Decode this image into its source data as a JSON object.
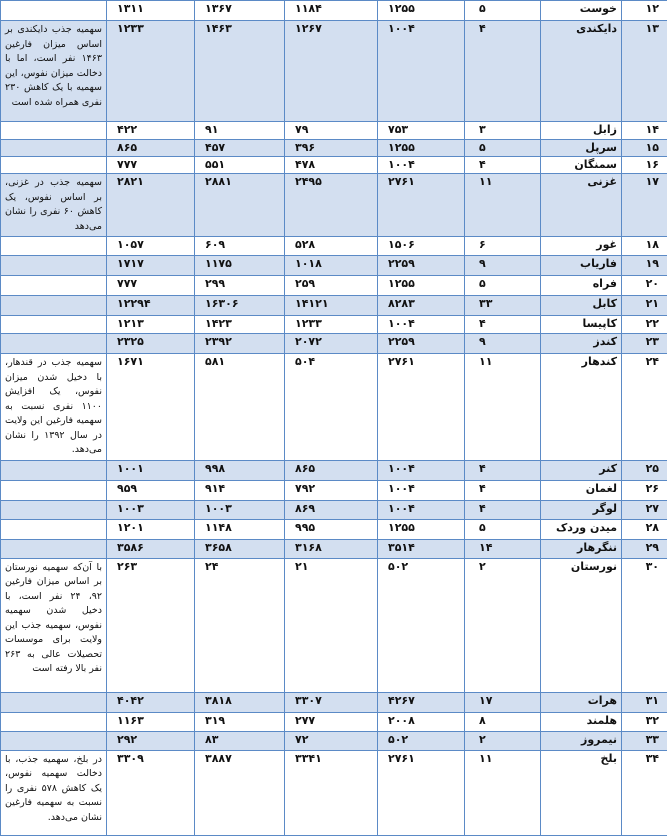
{
  "table": {
    "shaded_color": "#d3dff0",
    "border_color": "#5b8ac6",
    "rows": [
      {
        "num": "۱۲",
        "province": "خوست",
        "seats": "۵",
        "c4": "۱۲۵۵",
        "c5": "۱۱۸۴",
        "c6": "۱۳۶۷",
        "c7": "۱۳۱۱",
        "note": "",
        "shaded": false
      },
      {
        "num": "۱۳",
        "province": "دایکندی",
        "seats": "۴",
        "c4": "۱۰۰۴",
        "c5": "۱۲۶۷",
        "c6": "۱۴۶۳",
        "c7": "۱۲۳۳",
        "note": "سهمیه جذب دایکندی بر اساس میزان فارغین ۱۴۶۳ نفر است، اما با دخالت میزان نفوس، این سهمیه با یک کاهش ۲۳۰ نفری همراه شده است",
        "shaded": true
      },
      {
        "num": "۱۴",
        "province": "زابل",
        "seats": "۳",
        "c4": "۷۵۳",
        "c5": "۷۹",
        "c6": "۹۱",
        "c7": "۴۲۲",
        "note": "",
        "shaded": false
      },
      {
        "num": "۱۵",
        "province": "سرپل",
        "seats": "۵",
        "c4": "۱۲۵۵",
        "c5": "۳۹۶",
        "c6": "۴۵۷",
        "c7": "۸۶۵",
        "note": "",
        "shaded": true
      },
      {
        "num": "۱۶",
        "province": "سمنگان",
        "seats": "۴",
        "c4": "۱۰۰۴",
        "c5": "۴۷۸",
        "c6": "۵۵۱",
        "c7": "۷۷۷",
        "note": "",
        "shaded": false
      },
      {
        "num": "۱۷",
        "province": "غزنی",
        "seats": "۱۱",
        "c4": "۲۷۶۱",
        "c5": "۲۴۹۵",
        "c6": "۲۸۸۱",
        "c7": "۲۸۲۱",
        "note": "سهمیه جذب در غزنی، بر اساس نفوس، یک کاهش ۶۰ نفری را نشان می‌دهد",
        "shaded": true
      },
      {
        "num": "۱۸",
        "province": "غور",
        "seats": "۶",
        "c4": "۱۵۰۶",
        "c5": "۵۲۸",
        "c6": "۶۰۹",
        "c7": "۱۰۵۷",
        "note": "",
        "shaded": false
      },
      {
        "num": "۱۹",
        "province": "فاریاب",
        "seats": "۹",
        "c4": "۲۲۵۹",
        "c5": "۱۰۱۸",
        "c6": "۱۱۷۵",
        "c7": "۱۷۱۷",
        "note": "",
        "shaded": true
      },
      {
        "num": "۲۰",
        "province": "فراه",
        "seats": "۵",
        "c4": "۱۲۵۵",
        "c5": "۲۵۹",
        "c6": "۲۹۹",
        "c7": "۷۷۷",
        "note": "",
        "shaded": false
      },
      {
        "num": "۲۱",
        "province": "کابل",
        "seats": "۳۳",
        "c4": "۸۲۸۳",
        "c5": "۱۴۱۲۱",
        "c6": "۱۶۳۰۶",
        "c7": "۱۲۲۹۴",
        "note": "",
        "shaded": true
      },
      {
        "num": "۲۲",
        "province": "کاپیسا",
        "seats": "۴",
        "c4": "۱۰۰۴",
        "c5": "۱۲۳۳",
        "c6": "۱۴۲۳",
        "c7": "۱۲۱۳",
        "note": "",
        "shaded": false
      },
      {
        "num": "۲۳",
        "province": "کندز",
        "seats": "۹",
        "c4": "۲۲۵۹",
        "c5": "۲۰۷۲",
        "c6": "۲۳۹۲",
        "c7": "۲۳۲۵",
        "note": "",
        "shaded": true
      },
      {
        "num": "۲۴",
        "province": "کندهار",
        "seats": "۱۱",
        "c4": "۲۷۶۱",
        "c5": "۵۰۴",
        "c6": "۵۸۱",
        "c7": "۱۶۷۱",
        "note": "سهمیه جذب در قندهار، با دخیل شدن میزان نفوس، یک افزایش ۱۱۰۰ نفری نسبت به سهمیه فارغین این ولایت در سال ۱۳۹۲ را نشان می‌دهد.",
        "shaded": false
      },
      {
        "num": "۲۵",
        "province": "کنر",
        "seats": "۴",
        "c4": "۱۰۰۴",
        "c5": "۸۶۵",
        "c6": "۹۹۸",
        "c7": "۱۰۰۱",
        "note": "",
        "shaded": true
      },
      {
        "num": "۲۶",
        "province": "لغمان",
        "seats": "۴",
        "c4": "۱۰۰۴",
        "c5": "۷۹۲",
        "c6": "۹۱۴",
        "c7": "۹۵۹",
        "note": "",
        "shaded": false
      },
      {
        "num": "۲۷",
        "province": "لوگر",
        "seats": "۴",
        "c4": "۱۰۰۴",
        "c5": "۸۶۹",
        "c6": "۱۰۰۳",
        "c7": "۱۰۰۳",
        "note": "",
        "shaded": true
      },
      {
        "num": "۲۸",
        "province": "میدن وردک",
        "seats": "۵",
        "c4": "۱۲۵۵",
        "c5": "۹۹۵",
        "c6": "۱۱۴۸",
        "c7": "۱۲۰۱",
        "note": "",
        "shaded": false
      },
      {
        "num": "۲۹",
        "province": "ننگرهار",
        "seats": "۱۴",
        "c4": "۳۵۱۴",
        "c5": "۳۱۶۸",
        "c6": "۳۶۵۸",
        "c7": "۳۵۸۶",
        "note": "",
        "shaded": true
      },
      {
        "num": "۳۰",
        "province": "نورستان",
        "seats": "۲",
        "c4": "۵۰۲",
        "c5": "۲۱",
        "c6": "۲۴",
        "c7": "۲۶۳",
        "note": "با آن‌که سهمیه نورستان بر اساس میزان فارغین ۹۲، ۲۴ نفر است، با دخیل شدن سهمیه نفوس، سهمیه جذب این ولایت برای موسسات تحصیلات عالی به ۲۶۳ نفر بالا رفته است",
        "shaded": false
      },
      {
        "num": "۳۱",
        "province": "هرات",
        "seats": "۱۷",
        "c4": "۴۲۶۷",
        "c5": "۳۳۰۷",
        "c6": "۳۸۱۸",
        "c7": "۴۰۴۲",
        "note": "",
        "shaded": true
      },
      {
        "num": "۳۲",
        "province": "هلمند",
        "seats": "۸",
        "c4": "۲۰۰۸",
        "c5": "۲۷۷",
        "c6": "۳۱۹",
        "c7": "۱۱۶۳",
        "note": "",
        "shaded": false
      },
      {
        "num": "۳۳",
        "province": "نیمروز",
        "seats": "۲",
        "c4": "۵۰۲",
        "c5": "۷۲",
        "c6": "۸۳",
        "c7": "۲۹۲",
        "note": "",
        "shaded": true
      },
      {
        "num": "۳۴",
        "province": "بلخ",
        "seats": "۱۱",
        "c4": "۲۷۶۱",
        "c5": "۳۳۴۱",
        "c6": "۳۸۸۷",
        "c7": "۳۳۰۹",
        "note": "در بلخ، سهمیه جذب، با دخالت سهمیه نفوس، یک کاهش ۵۷۸ نفری را نسبت به سهمیه فارغین نشان می‌دهد.",
        "shaded": false
      }
    ]
  }
}
